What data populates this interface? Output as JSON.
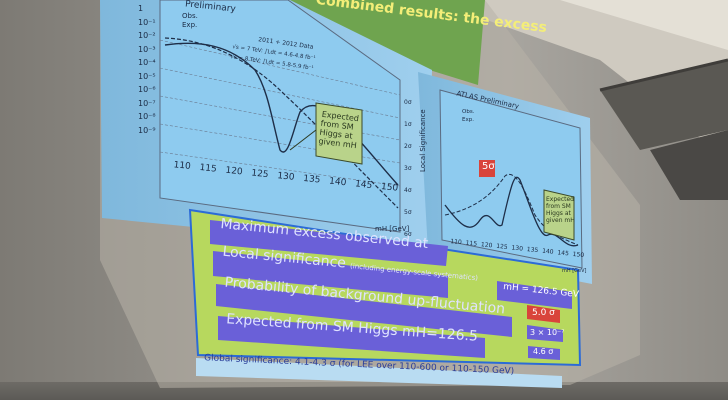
{
  "slide": {
    "title": "Combined results: the excess",
    "left_plot": {
      "legend_title": "Preliminary",
      "legend_obs": "Obs.",
      "legend_exp": "Exp.",
      "energy_lines": [
        "√s = 7 TeV: ∫Ldt = 4.6-4.8 fb⁻¹",
        "√s = 8 TeV: ∫Ldt = 5.8-5.9 fb⁻¹"
      ],
      "data_label": "2011 + 2012 Data",
      "annotation": [
        "Expected",
        "from SM",
        "Higgs at",
        "given mH"
      ],
      "y_ticks": [
        "1",
        "10⁻¹",
        "10⁻²",
        "10⁻³",
        "10⁻⁴",
        "10⁻⁵",
        "10⁻⁶",
        "10⁻⁷",
        "10⁻⁸",
        "10⁻⁹"
      ],
      "sigma_ticks": [
        "0σ",
        "1σ",
        "2σ",
        "3σ",
        "4σ",
        "5σ",
        "6σ"
      ],
      "x_ticks": [
        "110",
        "115",
        "120",
        "125",
        "130",
        "135",
        "140",
        "145",
        "150"
      ],
      "x_label": "mH [GeV]"
    },
    "right_plot": {
      "legend_title": "ATLAS Preliminary",
      "legend_obs": "Obs.",
      "legend_exp": "Exp.",
      "y_label": "Local Significance",
      "badge": "5σ",
      "annotation": [
        "Expected",
        "from SM",
        "Higgs at",
        "given mH"
      ],
      "x_ticks": [
        "110",
        "115",
        "120",
        "125",
        "130",
        "135",
        "140",
        "145",
        "150"
      ],
      "x_label": "mH [GeV]"
    },
    "boxes": {
      "row1": "Maximum excess observed at",
      "row2_main": "Local significance",
      "row2_note": "(including energy-scale systematics)",
      "row3": "Probability of background up-fluctuation",
      "row4": "Expected from SM Higgs mH=126.5"
    },
    "values": {
      "mass": "mH = 126.5 GeV",
      "local_sig": "5.0 σ",
      "prob": "3 × 10⁻⁷",
      "expected": "4.6 σ"
    },
    "global": "Global significance:  4.1-4.3 σ (for LEE over 110-600 or 110-150 GeV)"
  },
  "colors": {
    "slide_blue": "#86c7ee",
    "box_green": "#b7d85e",
    "button_blue": "#6a60d8",
    "value_red": "#d9443b",
    "title_yellow": "#f4ee78"
  }
}
